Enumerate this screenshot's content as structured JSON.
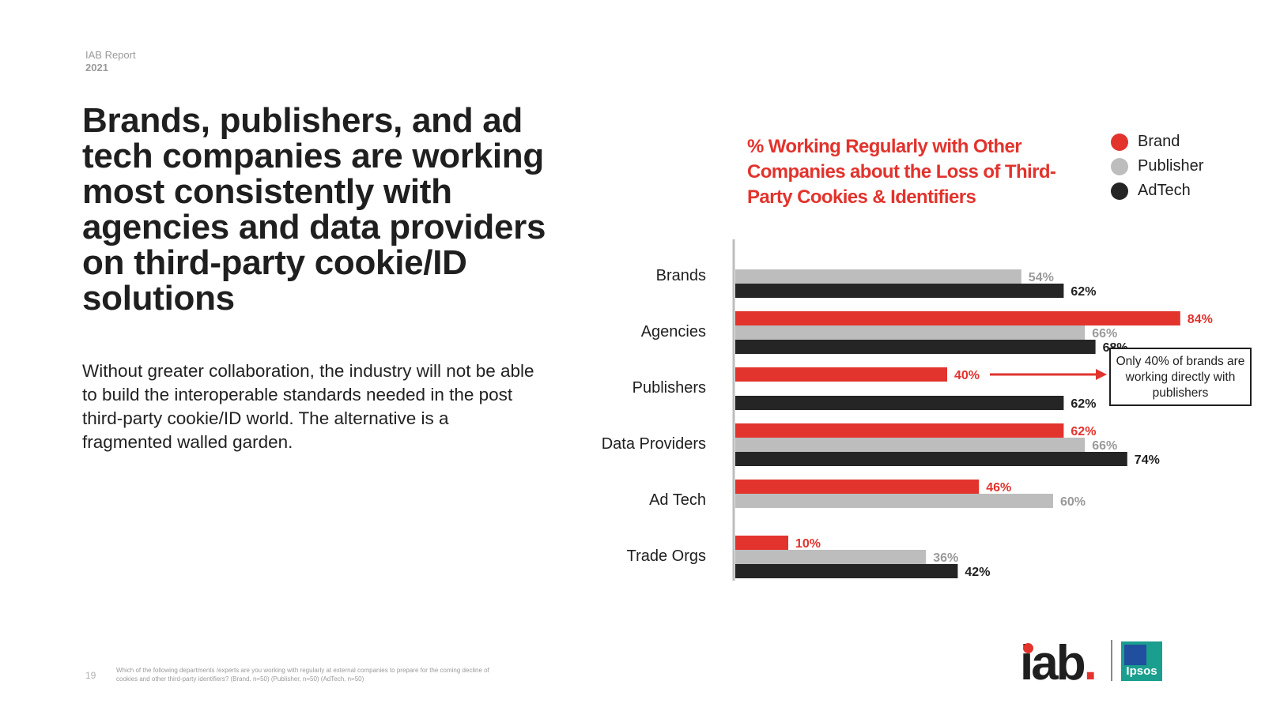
{
  "report": {
    "label": "IAB Report",
    "year": "2021"
  },
  "headline": "Brands, publishers, and ad tech companies are working most consistently with agencies and data providers on third-party cookie/ID solutions",
  "body": "Without greater collaboration, the industry will not be able to build the interoperable standards needed in the post third-party cookie/ID world. The alternative is a fragmented walled garden.",
  "legend": [
    {
      "label": "Brand",
      "color": "#e2332d"
    },
    {
      "label": "Publisher",
      "color": "#bdbdbd"
    },
    {
      "label": "AdTech",
      "color": "#252525"
    }
  ],
  "callout": "Only 40% of brands are working directly with publishers",
  "footer": {
    "page_number": "19",
    "footnote": "Which of the following departments /experts are you working with regularly at external companies to prepare for the coming decline of cookies and other third-party identifiers? (Brand, n=50) (Publisher, n=50) (AdTech, n=50)"
  },
  "logos": {
    "iab": "iab",
    "ipsos": "Ipsos"
  },
  "chart_data": {
    "type": "bar",
    "orientation": "horizontal",
    "title": "% Working Regularly with Other Companies about the Loss of Third-Party Cookies & Identifiers",
    "categories": [
      "Brands",
      "Agencies",
      "Publishers",
      "Data Providers",
      "Ad Tech",
      "Trade Orgs"
    ],
    "series": [
      {
        "name": "Brand",
        "color": "#e2332d",
        "values": [
          null,
          84,
          40,
          62,
          46,
          10
        ]
      },
      {
        "name": "Publisher",
        "color": "#bdbdbd",
        "values": [
          54,
          66,
          null,
          66,
          60,
          36
        ]
      },
      {
        "name": "AdTech",
        "color": "#252525",
        "values": [
          62,
          68,
          62,
          74,
          null,
          42
        ]
      }
    ],
    "value_suffix": "%",
    "xlim": [
      0,
      100
    ],
    "grid": false,
    "legend_position": "top-right"
  }
}
